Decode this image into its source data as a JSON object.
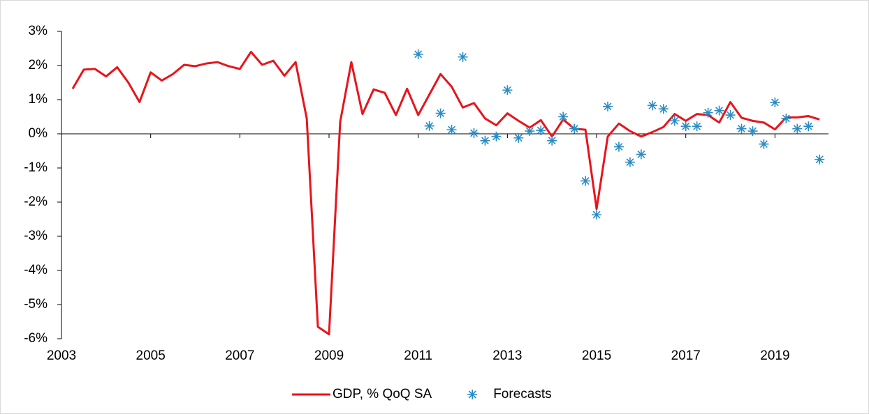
{
  "chart_data": {
    "type": "line",
    "xlim": [
      2003,
      2020.2
    ],
    "xticks": [
      2003,
      2005,
      2007,
      2009,
      2011,
      2013,
      2015,
      2017,
      2019
    ],
    "ylim": [
      -6,
      3
    ],
    "yticks": [
      {
        "value": 3,
        "label": "3%"
      },
      {
        "value": 2,
        "label": "2%"
      },
      {
        "value": 1,
        "label": "1%"
      },
      {
        "value": 0,
        "label": "0%"
      },
      {
        "value": -1,
        "label": "-1%"
      },
      {
        "value": -2,
        "label": "-2%"
      },
      {
        "value": -3,
        "label": "-3%"
      },
      {
        "value": -4,
        "label": "-4%"
      },
      {
        "value": -5,
        "label": "-5%"
      },
      {
        "value": -6,
        "label": "-6%"
      }
    ],
    "legend": "bottom",
    "series": [
      {
        "name": "GDP, % QoQ SA",
        "type": "line",
        "color": "#e8141b",
        "x": [
          2003.25,
          2003.5,
          2003.75,
          2004,
          2004.25,
          2004.5,
          2004.75,
          2005,
          2005.25,
          2005.5,
          2005.75,
          2006,
          2006.25,
          2006.5,
          2006.75,
          2007,
          2007.25,
          2007.5,
          2007.75,
          2008,
          2008.25,
          2008.5,
          2008.75,
          2009,
          2009.25,
          2009.5,
          2009.75,
          2010,
          2010.25,
          2010.5,
          2010.75,
          2011,
          2011.25,
          2011.5,
          2011.75,
          2012,
          2012.25,
          2012.5,
          2012.75,
          2013,
          2013.25,
          2013.5,
          2013.75,
          2014,
          2014.25,
          2014.5,
          2014.75,
          2015,
          2015.25,
          2015.5,
          2015.75,
          2016,
          2016.25,
          2016.5,
          2016.75,
          2017,
          2017.25,
          2017.5,
          2017.75,
          2018,
          2018.25,
          2018.5,
          2018.75,
          2019,
          2019.25,
          2019.5,
          2019.75,
          2020
        ],
        "values": [
          1.32,
          1.88,
          1.9,
          1.68,
          1.95,
          1.5,
          0.93,
          1.8,
          1.56,
          1.75,
          2.02,
          1.98,
          2.06,
          2.1,
          1.98,
          1.9,
          2.4,
          2.02,
          2.14,
          1.7,
          2.1,
          0.45,
          -5.65,
          -5.87,
          0.35,
          2.1,
          0.58,
          1.3,
          1.2,
          0.55,
          1.32,
          0.55,
          1.15,
          1.75,
          1.38,
          0.77,
          0.9,
          0.45,
          0.25,
          0.6,
          0.38,
          0.18,
          0.4,
          -0.08,
          0.42,
          0.15,
          0.12,
          -2.2,
          -0.08,
          0.3,
          0.08,
          -0.08,
          0.05,
          0.2,
          0.58,
          0.38,
          0.58,
          0.55,
          0.33,
          0.93,
          0.47,
          0.38,
          0.33,
          0.13,
          0.48,
          0.48,
          0.52,
          0.42
        ]
      },
      {
        "name": "Forecasts",
        "type": "scatter",
        "color": "#2a8cc4",
        "x": [
          2011,
          2011.25,
          2011.5,
          2011.75,
          2012,
          2012.25,
          2012.5,
          2012.75,
          2013,
          2013.25,
          2013.5,
          2013.75,
          2014,
          2014.25,
          2014.5,
          2014.75,
          2015,
          2015.25,
          2015.5,
          2015.75,
          2016,
          2016.25,
          2016.5,
          2016.75,
          2017,
          2017.25,
          2017.5,
          2017.75,
          2018,
          2018.25,
          2018.5,
          2018.75,
          2019,
          2019.25,
          2019.5,
          2019.75,
          2020
        ],
        "values": [
          2.33,
          0.23,
          0.6,
          0.12,
          2.25,
          0.02,
          -0.2,
          -0.08,
          1.28,
          -0.12,
          0.08,
          0.1,
          -0.2,
          0.5,
          0.15,
          -1.38,
          -2.37,
          0.8,
          -0.38,
          -0.83,
          -0.6,
          0.83,
          0.73,
          0.38,
          0.22,
          0.22,
          0.62,
          0.68,
          0.55,
          0.15,
          0.08,
          -0.3,
          0.92,
          0.45,
          0.15,
          0.22,
          -0.75
        ]
      }
    ]
  }
}
